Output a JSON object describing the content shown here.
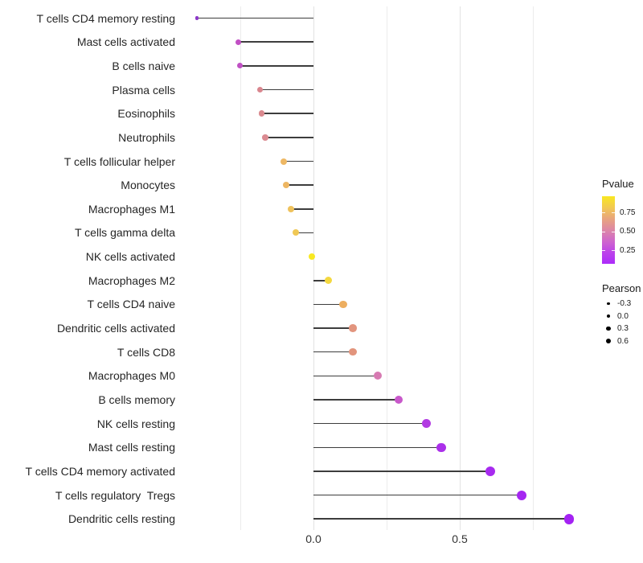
{
  "chart_data": {
    "type": "lollipop",
    "title": "",
    "xlabel": "",
    "ylabel": "",
    "x_ticks": [
      {
        "value": 0.0,
        "label": "0.0"
      },
      {
        "value": 0.5,
        "label": "0.5"
      }
    ],
    "gridline_values": [
      -0.25,
      0.0,
      0.25,
      0.5,
      0.75
    ],
    "major_gridline_values": [
      0.0,
      0.5
    ],
    "xlim": [
      -0.46,
      0.94
    ],
    "grid": "vertical-only",
    "points": [
      {
        "category": "T cells CD4 memory resting",
        "pearson": -0.398,
        "color": "#8C38C9",
        "diameter": 4.5
      },
      {
        "category": "Mast cells activated",
        "pearson": -0.257,
        "color": "#C14FC4",
        "diameter": 7
      },
      {
        "category": "B cells naive",
        "pearson": -0.251,
        "color": "#C051C4",
        "diameter": 7
      },
      {
        "category": "Plasma cells",
        "pearson": -0.183,
        "color": "#D9868E",
        "diameter": 7.5
      },
      {
        "category": "Eosinophils",
        "pearson": -0.177,
        "color": "#DA8A8F",
        "diameter": 7.5
      },
      {
        "category": "Neutrophils",
        "pearson": -0.165,
        "color": "#DB8B92",
        "diameter": 7.5
      },
      {
        "category": "T cells follicular helper",
        "pearson": -0.101,
        "color": "#EEB864",
        "diameter": 8
      },
      {
        "category": "Monocytes",
        "pearson": -0.094,
        "color": "#EDB662",
        "diameter": 8
      },
      {
        "category": "Macrophages M1",
        "pearson": -0.076,
        "color": "#EFC25C",
        "diameter": 8
      },
      {
        "category": "T cells gamma delta",
        "pearson": -0.06,
        "color": "#F0C855",
        "diameter": 8
      },
      {
        "category": "NK cells activated",
        "pearson": -0.005,
        "color": "#F8E821",
        "diameter": 8.5
      },
      {
        "category": "Macrophages M2",
        "pearson": 0.052,
        "color": "#F4D83F",
        "diameter": 9
      },
      {
        "category": "T cells CD4 naive",
        "pearson": 0.102,
        "color": "#EDAE60",
        "diameter": 9.5
      },
      {
        "category": "Dendritic cells activated",
        "pearson": 0.135,
        "color": "#E2957E",
        "diameter": 9.5
      },
      {
        "category": "T cells CD8",
        "pearson": 0.135,
        "color": "#E2947C",
        "diameter": 9.5
      },
      {
        "category": "Macrophages M0",
        "pearson": 0.22,
        "color": "#D77AB2",
        "diameter": 10
      },
      {
        "category": "B cells memory",
        "pearson": 0.291,
        "color": "#C858CA",
        "diameter": 10.5
      },
      {
        "category": "NK cells resting",
        "pearson": 0.387,
        "color": "#B23BE2",
        "diameter": 11
      },
      {
        "category": "Mast cells resting",
        "pearson": 0.437,
        "color": "#AB30EA",
        "diameter": 11.5
      },
      {
        "category": "T cells CD4 memory activated",
        "pearson": 0.604,
        "color": "#A72BEF",
        "diameter": 12
      },
      {
        "category": "T cells regulatory  Tregs",
        "pearson": 0.712,
        "color": "#A527F1",
        "diameter": 12
      },
      {
        "category": "Dendritic cells resting",
        "pearson": 0.873,
        "color": "#A422F3",
        "diameter": 12.5
      }
    ]
  },
  "legends": {
    "pvalue": {
      "title": "Pvalue",
      "ticks": [
        {
          "value": 0.75,
          "label": "0.75"
        },
        {
          "value": 0.5,
          "label": "0.50"
        },
        {
          "value": 0.25,
          "label": "0.25"
        }
      ],
      "domain": [
        0.07,
        0.965
      ],
      "gradient_stops": [
        "#F9E721",
        "#F2C952",
        "#E8A47E",
        "#DD87A6",
        "#CF66CC",
        "#BC43EA",
        "#AC2BFA"
      ]
    },
    "pearson": {
      "title": "Pearson",
      "items": [
        {
          "label": "-0.3",
          "diameter": 3.5
        },
        {
          "label": "0.0",
          "diameter": 4.8
        },
        {
          "label": "0.3",
          "diameter": 5.8
        },
        {
          "label": "0.6",
          "diameter": 6.8
        }
      ]
    }
  }
}
